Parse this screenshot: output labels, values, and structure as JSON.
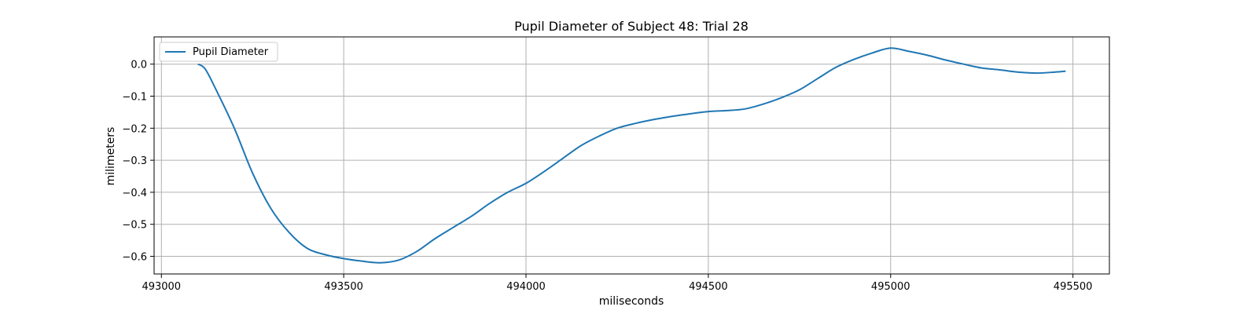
{
  "chart_data": {
    "type": "line",
    "title": "Pupil Diameter of Subject 48: Trial 28",
    "xlabel": "miliseconds",
    "ylabel": "milimeters",
    "xlim": [
      492980,
      495600
    ],
    "ylim": [
      -0.655,
      0.085
    ],
    "xticks": [
      493000,
      493500,
      494000,
      494500,
      495000,
      495500
    ],
    "xtick_labels": [
      "493000",
      "493500",
      "494000",
      "494500",
      "495000",
      "495500"
    ],
    "yticks": [
      0.0,
      -0.1,
      -0.2,
      -0.3,
      -0.4,
      -0.5,
      -0.6
    ],
    "ytick_labels": [
      "0.0",
      "−0.1",
      "−0.2",
      "−0.3",
      "−0.4",
      "−0.5",
      "−0.6"
    ],
    "grid": true,
    "legend": {
      "position": "top-left",
      "entries": [
        "Pupil Diameter"
      ]
    },
    "series": [
      {
        "name": "Pupil Diameter",
        "color": "#1f77b4",
        "x": [
          493100,
          493120,
          493150,
          493200,
          493250,
          493300,
          493350,
          493400,
          493450,
          493500,
          493550,
          493600,
          493650,
          493700,
          493750,
          493800,
          493850,
          493900,
          493950,
          494000,
          494050,
          494100,
          494150,
          494200,
          494250,
          494300,
          494350,
          494400,
          494450,
          494500,
          494550,
          494600,
          494650,
          494700,
          494750,
          494800,
          494850,
          494900,
          494950,
          495000,
          495050,
          495100,
          495150,
          495200,
          495250,
          495300,
          495350,
          495400,
          495450,
          495480
        ],
        "y": [
          0.0,
          -0.015,
          -0.08,
          -0.2,
          -0.34,
          -0.45,
          -0.525,
          -0.575,
          -0.595,
          -0.607,
          -0.615,
          -0.62,
          -0.612,
          -0.585,
          -0.545,
          -0.51,
          -0.475,
          -0.435,
          -0.4,
          -0.372,
          -0.335,
          -0.295,
          -0.255,
          -0.225,
          -0.2,
          -0.185,
          -0.173,
          -0.163,
          -0.155,
          -0.148,
          -0.145,
          -0.14,
          -0.125,
          -0.105,
          -0.08,
          -0.045,
          -0.01,
          0.015,
          0.035,
          0.05,
          0.04,
          0.028,
          0.013,
          0.0,
          -0.012,
          -0.018,
          -0.025,
          -0.028,
          -0.025,
          -0.022
        ]
      }
    ]
  }
}
